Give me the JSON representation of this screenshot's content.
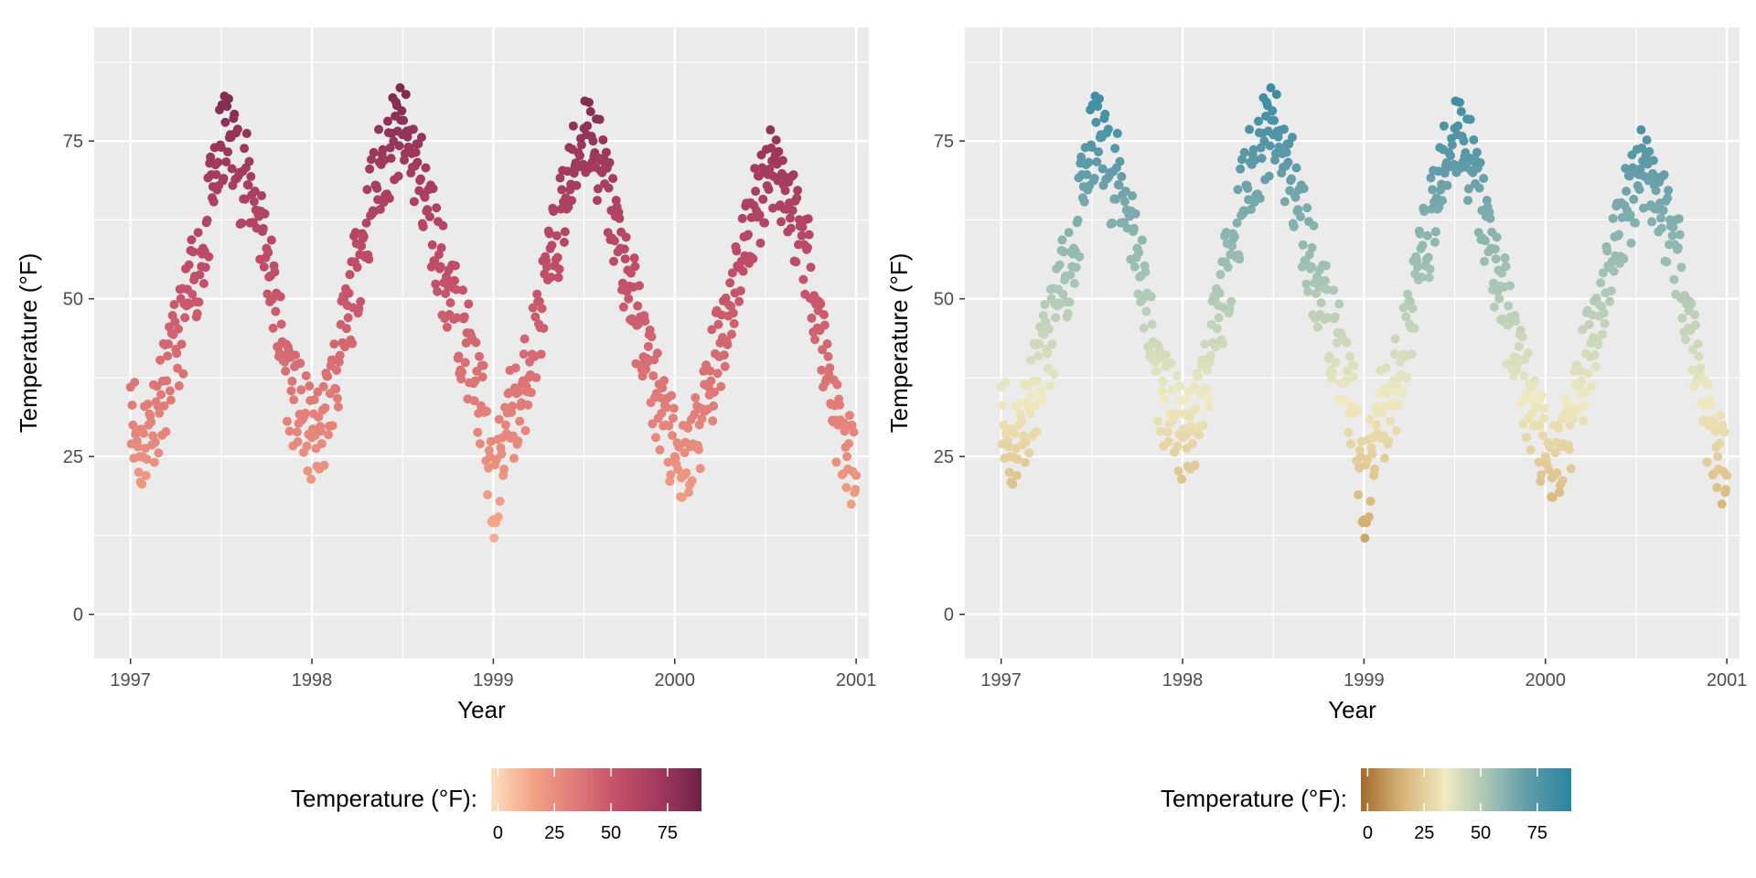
{
  "chart_data": [
    {
      "type": "scatter",
      "title": "",
      "xlabel": "Year",
      "ylabel": "Temperature (°F)",
      "xlim": [
        1996.8,
        2001.07
      ],
      "ylim": [
        -7,
        93
      ],
      "xticks": [
        1997,
        1998,
        1999,
        2000,
        2001
      ],
      "xtick_labels": [
        "1997",
        "1998",
        "1999",
        "2000",
        "2001"
      ],
      "yticks": [
        0,
        25,
        50,
        75
      ],
      "ytick_labels": [
        "0",
        "25",
        "50",
        "75"
      ],
      "grid": true,
      "point_color_by": "temperature",
      "legend": {
        "title": "Temperature (°F):",
        "position": "bottom",
        "range": [
          -3,
          90
        ],
        "ticks": [
          0,
          25,
          50,
          75
        ],
        "tick_labels": [
          "0",
          "25",
          "50",
          "75"
        ],
        "colors": [
          "#FCE1C0",
          "#F2A285",
          "#E07B78",
          "#C45069",
          "#A13A5E",
          "#6E2148"
        ]
      },
      "series": [
        {
          "x": [
            1997.0,
            1997.05,
            1997.1,
            1997.15,
            1997.2,
            1997.25,
            1997.3,
            1997.35,
            1997.4,
            1997.45,
            1997.5,
            1997.55,
            1997.6,
            1997.65,
            1997.7,
            1997.75,
            1997.8,
            1997.85,
            1997.9,
            1997.95,
            1998.0,
            1998.05,
            1998.1,
            1998.15,
            1998.2,
            1998.25,
            1998.3,
            1998.35,
            1998.4,
            1998.45,
            1998.5,
            1998.55,
            1998.6,
            1998.65,
            1998.7,
            1998.75,
            1998.8,
            1998.85,
            1998.9,
            1998.95,
            1999.0,
            1999.05,
            1999.1,
            1999.15,
            1999.2,
            1999.25,
            1999.3,
            1999.35,
            1999.4,
            1999.45,
            1999.5,
            1999.55,
            1999.6,
            1999.65,
            1999.7,
            1999.75,
            1999.8,
            1999.85,
            1999.9,
            1999.95,
            2000.0,
            2000.05,
            2000.1,
            2000.15,
            2000.2,
            2000.25,
            2000.3,
            2000.35,
            2000.4,
            2000.45,
            2000.5,
            2000.55,
            2000.6,
            2000.65,
            2000.7,
            2000.75,
            2000.8,
            2000.85,
            2000.9,
            2000.95,
            2001.0
          ],
          "y": [
            36,
            25,
            30,
            33,
            37,
            42,
            47,
            53,
            58,
            66,
            74,
            76,
            70,
            68,
            64,
            58,
            48,
            40,
            34,
            31,
            28,
            29,
            35,
            40,
            47,
            55,
            62,
            68,
            72,
            75,
            76,
            73,
            69,
            63,
            57,
            52,
            47,
            43,
            37,
            32,
            15,
            28,
            32,
            33,
            40,
            46,
            53,
            60,
            66,
            71,
            77,
            75,
            70,
            64,
            58,
            52,
            46,
            40,
            35,
            30,
            25,
            22,
            27,
            31,
            37,
            43,
            49,
            55,
            60,
            64,
            70,
            72,
            68,
            64,
            60,
            55,
            45,
            38,
            30,
            25,
            22
          ]
        }
      ]
    },
    {
      "type": "scatter",
      "title": "",
      "xlabel": "Year",
      "ylabel": "Temperature (°F)",
      "xlim": [
        1996.8,
        2001.07
      ],
      "ylim": [
        -7,
        93
      ],
      "xticks": [
        1997,
        1998,
        1999,
        2000,
        2001
      ],
      "xtick_labels": [
        "1997",
        "1998",
        "1999",
        "2000",
        "2001"
      ],
      "yticks": [
        0,
        25,
        50,
        75
      ],
      "ytick_labels": [
        "0",
        "25",
        "50",
        "75"
      ],
      "grid": true,
      "point_color_by": "temperature",
      "legend": {
        "title": "Temperature (°F):",
        "position": "bottom",
        "range": [
          -3,
          90
        ],
        "ticks": [
          0,
          25,
          50,
          75
        ],
        "tick_labels": [
          "0",
          "25",
          "50",
          "75"
        ],
        "colors": [
          "#A36B2B",
          "#D6B47A",
          "#F0EAC0",
          "#A7C5B5",
          "#5E9AA8",
          "#2886A0"
        ]
      },
      "series": [
        {
          "x": [
            1997.0,
            1997.05,
            1997.1,
            1997.15,
            1997.2,
            1997.25,
            1997.3,
            1997.35,
            1997.4,
            1997.45,
            1997.5,
            1997.55,
            1997.6,
            1997.65,
            1997.7,
            1997.75,
            1997.8,
            1997.85,
            1997.9,
            1997.95,
            1998.0,
            1998.05,
            1998.1,
            1998.15,
            1998.2,
            1998.25,
            1998.3,
            1998.35,
            1998.4,
            1998.45,
            1998.5,
            1998.55,
            1998.6,
            1998.65,
            1998.7,
            1998.75,
            1998.8,
            1998.85,
            1998.9,
            1998.95,
            1999.0,
            1999.05,
            1999.1,
            1999.15,
            1999.2,
            1999.25,
            1999.3,
            1999.35,
            1999.4,
            1999.45,
            1999.5,
            1999.55,
            1999.6,
            1999.65,
            1999.7,
            1999.75,
            1999.8,
            1999.85,
            1999.9,
            1999.95,
            2000.0,
            2000.05,
            2000.1,
            2000.15,
            2000.2,
            2000.25,
            2000.3,
            2000.35,
            2000.4,
            2000.45,
            2000.5,
            2000.55,
            2000.6,
            2000.65,
            2000.7,
            2000.75,
            2000.8,
            2000.85,
            2000.9,
            2000.95,
            2001.0
          ],
          "y": [
            36,
            25,
            30,
            33,
            37,
            42,
            47,
            53,
            58,
            66,
            74,
            76,
            70,
            68,
            64,
            58,
            48,
            40,
            34,
            31,
            28,
            29,
            35,
            40,
            47,
            55,
            62,
            68,
            72,
            75,
            76,
            73,
            69,
            63,
            57,
            52,
            47,
            43,
            37,
            32,
            15,
            28,
            32,
            33,
            40,
            46,
            53,
            60,
            66,
            71,
            77,
            75,
            70,
            64,
            58,
            52,
            46,
            40,
            35,
            30,
            25,
            22,
            27,
            31,
            37,
            43,
            49,
            55,
            60,
            64,
            70,
            72,
            68,
            64,
            60,
            55,
            45,
            38,
            30,
            25,
            22
          ]
        }
      ]
    }
  ]
}
